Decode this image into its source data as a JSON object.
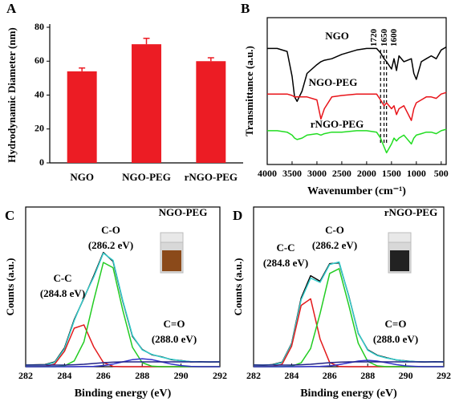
{
  "chart_data": [
    {
      "type": "bar",
      "panel": "A",
      "ylabel": "Hydrodynamic Diameter (nm)",
      "categories": [
        "NGO",
        "NGO-PEG",
        "rNGO-PEG"
      ],
      "values": [
        54,
        70,
        60
      ],
      "errors": [
        2,
        3.5,
        2
      ],
      "color": "#ec1c24",
      "ylim": [
        0,
        80
      ],
      "yticks": [
        0,
        20,
        40,
        60,
        80
      ]
    },
    {
      "type": "line",
      "panel": "B",
      "xlabel": "Wavenumber (cm⁻¹)",
      "ylabel": "Transmittance (a.u.)",
      "x": [
        4000,
        3800,
        3600,
        3500,
        3450,
        3400,
        3300,
        3200,
        3000,
        2920,
        2850,
        2700,
        2500,
        2200,
        2000,
        1800,
        1720,
        1650,
        1600,
        1500,
        1450,
        1400,
        1350,
        1250,
        1100,
        1050,
        1000,
        900,
        800,
        700,
        600,
        500,
        400
      ],
      "series": [
        {
          "name": "NGO",
          "color": "#000000",
          "values": [
            79,
            79,
            77,
            60,
            46,
            43,
            50,
            62,
            68,
            70,
            71,
            72,
            75,
            78,
            79,
            79,
            76,
            72,
            70,
            65,
            72,
            64,
            74,
            70,
            72,
            62,
            58,
            70,
            72,
            74,
            72,
            78,
            80
          ]
        },
        {
          "name": "NGO-PEG",
          "color": "#e8141a",
          "values": [
            48,
            48,
            48,
            47,
            46,
            46,
            46,
            46,
            44,
            31,
            38,
            46,
            47,
            48,
            48,
            48,
            44,
            40,
            42,
            38,
            40,
            34,
            38,
            40,
            30,
            38,
            42,
            44,
            46,
            46,
            45,
            48,
            49
          ]
        },
        {
          "name": "rNGO-PEG",
          "color": "#22dd22",
          "values": [
            23,
            23,
            22,
            20,
            18,
            17,
            18,
            20,
            21,
            20,
            21,
            22,
            22,
            23,
            23,
            22,
            18,
            12,
            8,
            14,
            18,
            16,
            18,
            20,
            14,
            18,
            20,
            21,
            22,
            22,
            21,
            23,
            24
          ]
        }
      ],
      "markers": [
        1720,
        1650,
        1600
      ],
      "xlim": [
        4000,
        400
      ],
      "xticks": [
        4000,
        3500,
        3000,
        2500,
        2000,
        1500,
        1000,
        500
      ],
      "ylim": [
        0,
        100
      ]
    },
    {
      "type": "line",
      "panel": "C",
      "xlabel": "Binding energy (eV)",
      "ylabel": "Counts (a.u.)",
      "inset_label": "NGO-PEG",
      "x": [
        282,
        282.5,
        283,
        283.5,
        284,
        284.5,
        285,
        285.5,
        286,
        286.5,
        287,
        287.5,
        288,
        288.5,
        289,
        289.5,
        290,
        290.5,
        291,
        291.5,
        292
      ],
      "series": [
        {
          "color": "#000000",
          "values": [
            1,
            1.2,
            1.3,
            3,
            11.8,
            29.5,
            43,
            56.8,
            71.5,
            66,
            41,
            19,
            10.8,
            7.5,
            6.2,
            4.4,
            3.8,
            3,
            3.1,
            2.9,
            3
          ]
        },
        {
          "color": "#33cccc",
          "values": [
            1,
            1,
            1.1,
            2.7,
            11.2,
            28.9,
            43.4,
            56,
            71.1,
            66.6,
            41.4,
            19.5,
            10.5,
            7.7,
            6,
            4.6,
            3.7,
            3.2,
            3,
            3,
            3
          ]
        },
        {
          "name": "C-C",
          "label": "(284.8 eV)",
          "color": "#e31a1c",
          "values": [
            0,
            0,
            0.1,
            1.7,
            9.7,
            24.1,
            26.2,
            12.5,
            2.6,
            0.2,
            0,
            0,
            0,
            0,
            0,
            0,
            0,
            0,
            0,
            0,
            0
          ]
        },
        {
          "name": "C-O",
          "label": "(286.2 eV)",
          "color": "#22cc22",
          "values": [
            0,
            0,
            0,
            0,
            0.5,
            3.6,
            15.6,
            41.3,
            65.3,
            62,
            35.4,
            12.1,
            2.5,
            0.3,
            0,
            0,
            0,
            0,
            0,
            0,
            0
          ]
        },
        {
          "name": "C=O",
          "label": "(288.0 eV)",
          "color": "#3333cc",
          "values": [
            0,
            0,
            0,
            0,
            0,
            0,
            0.1,
            0.2,
            0.7,
            1.6,
            3,
            4.4,
            5,
            4.4,
            3,
            1.6,
            0.7,
            0.2,
            0,
            0,
            0
          ]
        },
        {
          "color": "#222288",
          "values": [
            1,
            1,
            1,
            1,
            1,
            1.2,
            1.5,
            2,
            2.5,
            2.8,
            3,
            3,
            3,
            3,
            3,
            3,
            3,
            3,
            3,
            3,
            3
          ]
        }
      ],
      "xlim": [
        282,
        292
      ],
      "xticks": [
        282,
        284,
        286,
        288,
        290,
        292
      ],
      "ylim": [
        0,
        100
      ]
    },
    {
      "type": "line",
      "panel": "D",
      "xlabel": "Binding energy (eV)",
      "ylabel": "Counts (a.u.)",
      "inset_label": "rNGO-PEG",
      "x": [
        282,
        282.5,
        283,
        283.5,
        284,
        284.5,
        285,
        285.5,
        286,
        286.5,
        287,
        287.5,
        288,
        288.5,
        289,
        289.5,
        290,
        290.5,
        291,
        291.5,
        292
      ],
      "series": [
        {
          "color": "#000000",
          "values": [
            1.1,
            0.9,
            1.3,
            2.8,
            14.5,
            43,
            57,
            53.5,
            64.5,
            65,
            44.5,
            21,
            10.6,
            7.2,
            5.6,
            4.2,
            3.6,
            3.1,
            2.9,
            3.1,
            3
          ]
        },
        {
          "color": "#33cccc",
          "values": [
            1,
            1,
            1.1,
            2.6,
            14.1,
            42,
            55.5,
            52.8,
            64,
            65.6,
            44.2,
            21.2,
            10.3,
            7,
            5.4,
            4.3,
            3.5,
            3.2,
            3,
            3,
            3
          ]
        },
        {
          "name": "C-C",
          "label": "(284.8 eV)",
          "color": "#e31a1c",
          "values": [
            0,
            0,
            0.1,
            1.6,
            12.8,
            38.4,
            42.5,
            17.3,
            2.6,
            0.1,
            0,
            0,
            0,
            0,
            0,
            0,
            0,
            0,
            0,
            0,
            0
          ]
        },
        {
          "name": "C-O",
          "label": "(286.2 eV)",
          "color": "#22cc22",
          "values": [
            0,
            0,
            0,
            0,
            0.3,
            2.4,
            11.4,
            33.3,
            58.4,
            61.4,
            38.8,
            14.7,
            3.3,
            0.5,
            0,
            0,
            0,
            0,
            0,
            0,
            0
          ]
        },
        {
          "name": "C=O",
          "label": "(288.0 eV)",
          "color": "#3333cc",
          "values": [
            0,
            0,
            0,
            0,
            0,
            0,
            0.1,
            0.2,
            0.5,
            1.3,
            2.4,
            3.5,
            4,
            3.5,
            2.4,
            1.3,
            0.5,
            0.2,
            0,
            0,
            0
          ]
        },
        {
          "color": "#222288",
          "values": [
            1,
            1,
            1,
            1,
            1,
            1.2,
            1.5,
            2,
            2.5,
            2.8,
            3,
            3,
            3,
            3,
            3,
            3,
            3,
            3,
            3,
            3,
            3
          ]
        }
      ],
      "xlim": [
        282,
        292
      ],
      "xticks": [
        282,
        284,
        286,
        288,
        290,
        292
      ],
      "ylim": [
        0,
        100
      ]
    }
  ]
}
